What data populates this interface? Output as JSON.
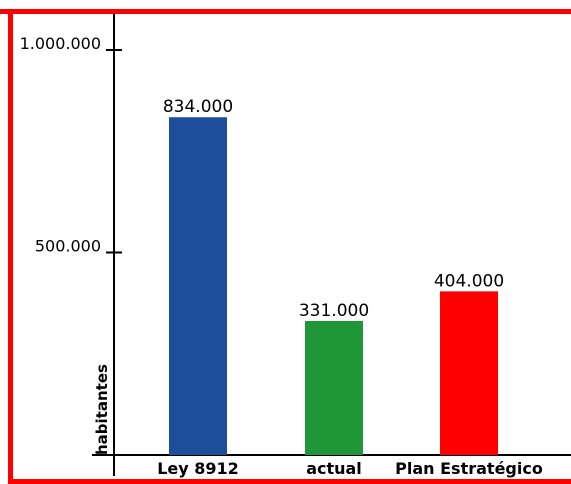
{
  "chart_data": {
    "type": "bar",
    "categories": [
      "Ley 8912",
      "actual",
      "Plan Estratégico"
    ],
    "values": [
      834000,
      331000,
      404000
    ],
    "value_labels": [
      "834.000",
      "331.000",
      "404.000"
    ],
    "bar_colors": [
      "#1c4e9c",
      "#1f9638",
      "#ff0000"
    ],
    "ylabel": "habitantes",
    "ylim": [
      0,
      1000000
    ],
    "yticks": [
      {
        "value": 500000,
        "label": "500.000"
      },
      {
        "value": 1000000,
        "label": "1.000.000"
      }
    ],
    "grid": false,
    "legend": "none",
    "frame_color": "#ff0000"
  }
}
